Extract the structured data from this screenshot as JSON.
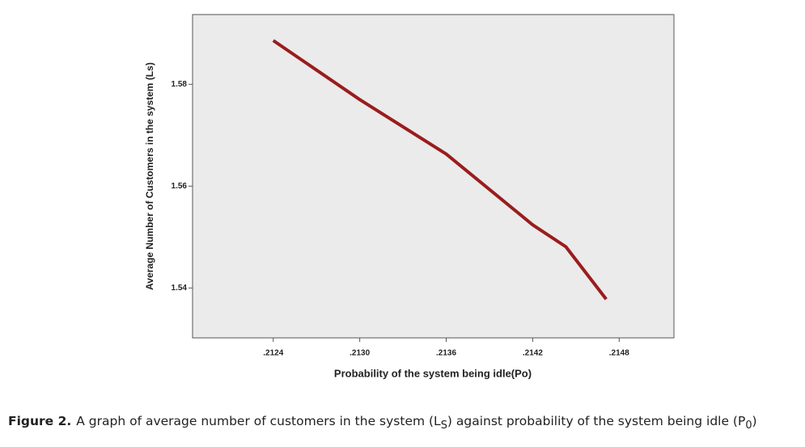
{
  "chart_data": {
    "type": "line",
    "x_label": "Probability of the system being idle(Po)",
    "y_label": "Average Number of Customers in the system (Ls)",
    "x": [
      0.2124,
      0.213,
      0.2136,
      0.2142,
      0.21443,
      0.21471
    ],
    "series": [
      {
        "color": "#9b1c1c",
        "values": [
          1.5886,
          1.577,
          1.5663,
          1.5524,
          1.5481,
          1.5378
        ]
      }
    ],
    "xlim": [
      0.21184,
      0.21518
    ],
    "ylim": [
      1.5302,
      1.5937
    ],
    "xticks": [
      {
        "value": 0.2124,
        "label": ".2124"
      },
      {
        "value": 0.213,
        "label": ".2130"
      },
      {
        "value": 0.2136,
        "label": ".2136"
      },
      {
        "value": 0.2142,
        "label": ".2142"
      },
      {
        "value": 0.2148,
        "label": ".2148"
      }
    ],
    "yticks": [
      1.54,
      1.56,
      1.58
    ]
  },
  "caption": {
    "label": "Figure 2.",
    "text": "A graph of average number of customers in the system (L",
    "sub1": "S",
    "text2": ") against probability of the system being idle (P",
    "sub2": "0",
    "text3": ")"
  }
}
